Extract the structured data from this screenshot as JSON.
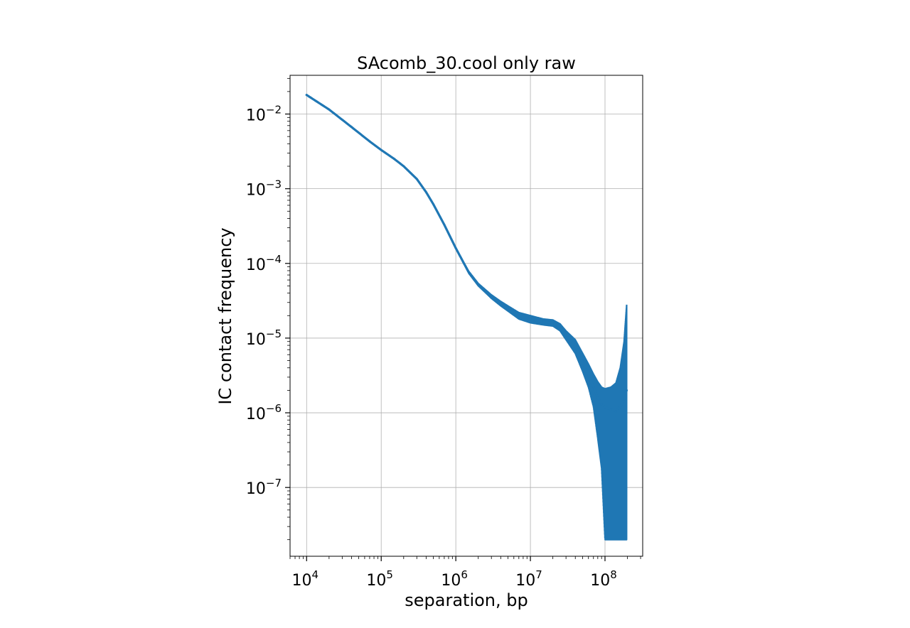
{
  "chart_data": {
    "type": "line",
    "title": "SAcomb_30.cool only raw",
    "xlabel": "separation, bp",
    "ylabel": "IC contact frequency",
    "x_scale": "log",
    "y_scale": "log",
    "xlim": [
      6000,
      320000000
    ],
    "ylim": [
      1.2e-08,
      0.033
    ],
    "grid": true,
    "x_ticks": [
      {
        "base": "10",
        "exp": "4",
        "value": 10000
      },
      {
        "base": "10",
        "exp": "5",
        "value": 100000
      },
      {
        "base": "10",
        "exp": "6",
        "value": 1000000
      },
      {
        "base": "10",
        "exp": "7",
        "value": 10000000
      },
      {
        "base": "10",
        "exp": "8",
        "value": 100000000
      }
    ],
    "y_ticks": [
      {
        "base": "10",
        "exp": "−7",
        "value": 1e-07
      },
      {
        "base": "10",
        "exp": "−6",
        "value": 1e-06
      },
      {
        "base": "10",
        "exp": "−5",
        "value": 1e-05
      },
      {
        "base": "10",
        "exp": "−4",
        "value": 0.0001
      },
      {
        "base": "10",
        "exp": "−3",
        "value": 0.001
      },
      {
        "base": "10",
        "exp": "−2",
        "value": 0.01
      }
    ],
    "series": [
      {
        "color": "#1f77b4",
        "x": [
          10000,
          20000,
          40000,
          70000,
          100000,
          150000,
          200000,
          300000,
          400000,
          500000,
          700000,
          1000000,
          1500000,
          2000000,
          3000000,
          4000000,
          5000000,
          7000000,
          10000000,
          15000000,
          20000000,
          25000000,
          30000000,
          40000000,
          50000000,
          60000000,
          70000000,
          80000000,
          90000000,
          100000000,
          120000000,
          140000000,
          160000000,
          180000000,
          195000000
        ],
        "y": [
          0.018,
          0.0115,
          0.0067,
          0.0043,
          0.0033,
          0.0025,
          0.002,
          0.00135,
          0.0009,
          0.00062,
          0.00033,
          0.00016,
          7.5e-05,
          5.2e-05,
          3.6e-05,
          2.9e-05,
          2.5e-05,
          2e-05,
          1.8e-05,
          1.65e-05,
          1.6e-05,
          1.4e-05,
          1.1e-05,
          7.8e-06,
          4.8e-06,
          3.2e-06,
          2.2e-06,
          1.6e-06,
          1.3e-06,
          1.2e-06,
          1.1e-06,
          1.05e-06,
          1.2e-06,
          1.5e-06,
          2e-06
        ],
        "y_low": [
          0.018,
          0.0115,
          0.0067,
          0.0043,
          0.0033,
          0.0025,
          0.002,
          0.00135,
          0.0009,
          0.00062,
          0.00033,
          0.00016,
          7.3e-05,
          5e-05,
          3.4e-05,
          2.7e-05,
          2.3e-05,
          1.8e-05,
          1.6e-05,
          1.5e-05,
          1.45e-05,
          1.25e-05,
          9.5e-06,
          6.2e-06,
          3.6e-06,
          2.2e-06,
          1.2e-06,
          4.5e-07,
          1.8e-07,
          2e-08,
          2e-08,
          2e-08,
          2e-08,
          2e-08,
          2e-08
        ],
        "y_high": [
          0.018,
          0.0115,
          0.0067,
          0.0043,
          0.0033,
          0.0025,
          0.002,
          0.00135,
          0.0009,
          0.00062,
          0.00033,
          0.00016,
          7.8e-05,
          5.4e-05,
          3.8e-05,
          3.1e-05,
          2.7e-05,
          2.2e-05,
          2e-05,
          1.8e-05,
          1.75e-05,
          1.55e-05,
          1.25e-05,
          9.5e-06,
          6.3e-06,
          4.5e-06,
          3.3e-06,
          2.6e-06,
          2.2e-06,
          2.1e-06,
          2.2e-06,
          2.5e-06,
          4e-06,
          9e-06,
          2.8e-05
        ]
      }
    ]
  }
}
